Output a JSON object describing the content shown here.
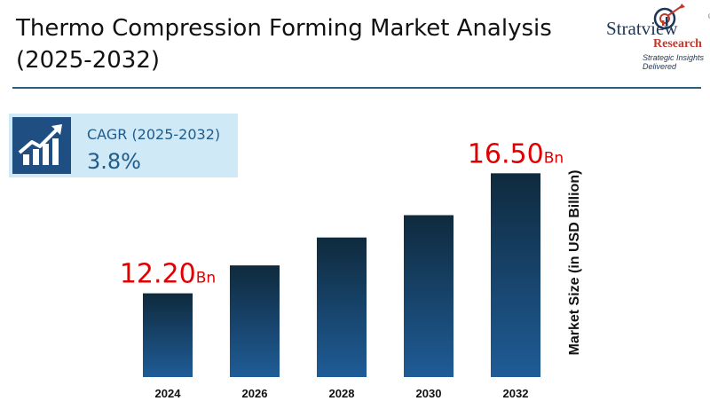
{
  "header": {
    "title": "Thermo Compression Forming Market Analysis (2025-2032)"
  },
  "brand": {
    "name": "Stratview",
    "registered_mark": "®",
    "sub": "Research",
    "tagline": "Strategic Insights Delivered"
  },
  "cagr": {
    "label": "CAGR (2025-2032)",
    "value": "3.8%",
    "icon": "growth-chart-icon"
  },
  "colors": {
    "bar_top": "#0f2a3d",
    "bar_bottom": "#1f5c97",
    "highlight_label": "#e00000",
    "accent_line": "#2f5f7a",
    "cagr_background": "#cfe9f7"
  },
  "chart_data": {
    "type": "bar",
    "categories": [
      "2024",
      "2026",
      "2028",
      "2030",
      "2032"
    ],
    "values": [
      12.2,
      13.2,
      14.2,
      15.0,
      16.5
    ],
    "data_labels": [
      {
        "category": "2024",
        "number": "12.20",
        "unit": "Bn"
      },
      {
        "category": "2032",
        "number": "16.50",
        "unit": "Bn"
      }
    ],
    "title": "Thermo Compression Forming Market Analysis (2025-2032)",
    "xlabel": "",
    "ylabel": "Market Size (in USD Billion)",
    "ylim": [
      9.2,
      17.0
    ],
    "grid": false,
    "legend": "none"
  }
}
